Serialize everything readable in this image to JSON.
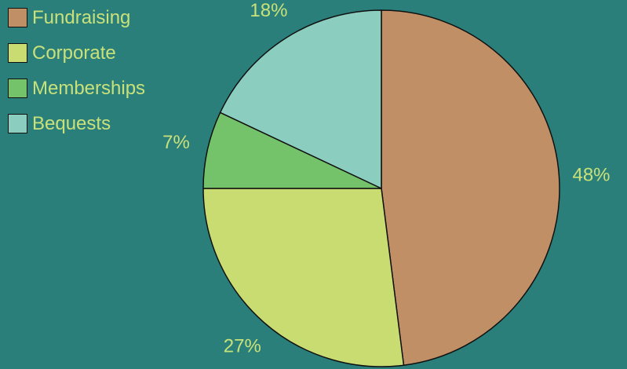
{
  "chart_data": {
    "type": "pie",
    "title": "",
    "categories": [
      "Fundraising",
      "Corporate",
      "Memberships",
      "Bequests"
    ],
    "values": [
      48,
      27,
      7,
      18
    ],
    "value_labels": [
      "48%",
      "27%",
      "7%",
      "18%"
    ],
    "colors": [
      "#c08f66",
      "#c9dc72",
      "#74c26a",
      "#8bcec0"
    ],
    "legend_position": "top-left",
    "start_angle_degrees": 0,
    "direction": "clockwise-from-top"
  },
  "style": {
    "background": "#2a7f7a",
    "text_color": "#c9e17a",
    "outline_color": "#111111"
  }
}
